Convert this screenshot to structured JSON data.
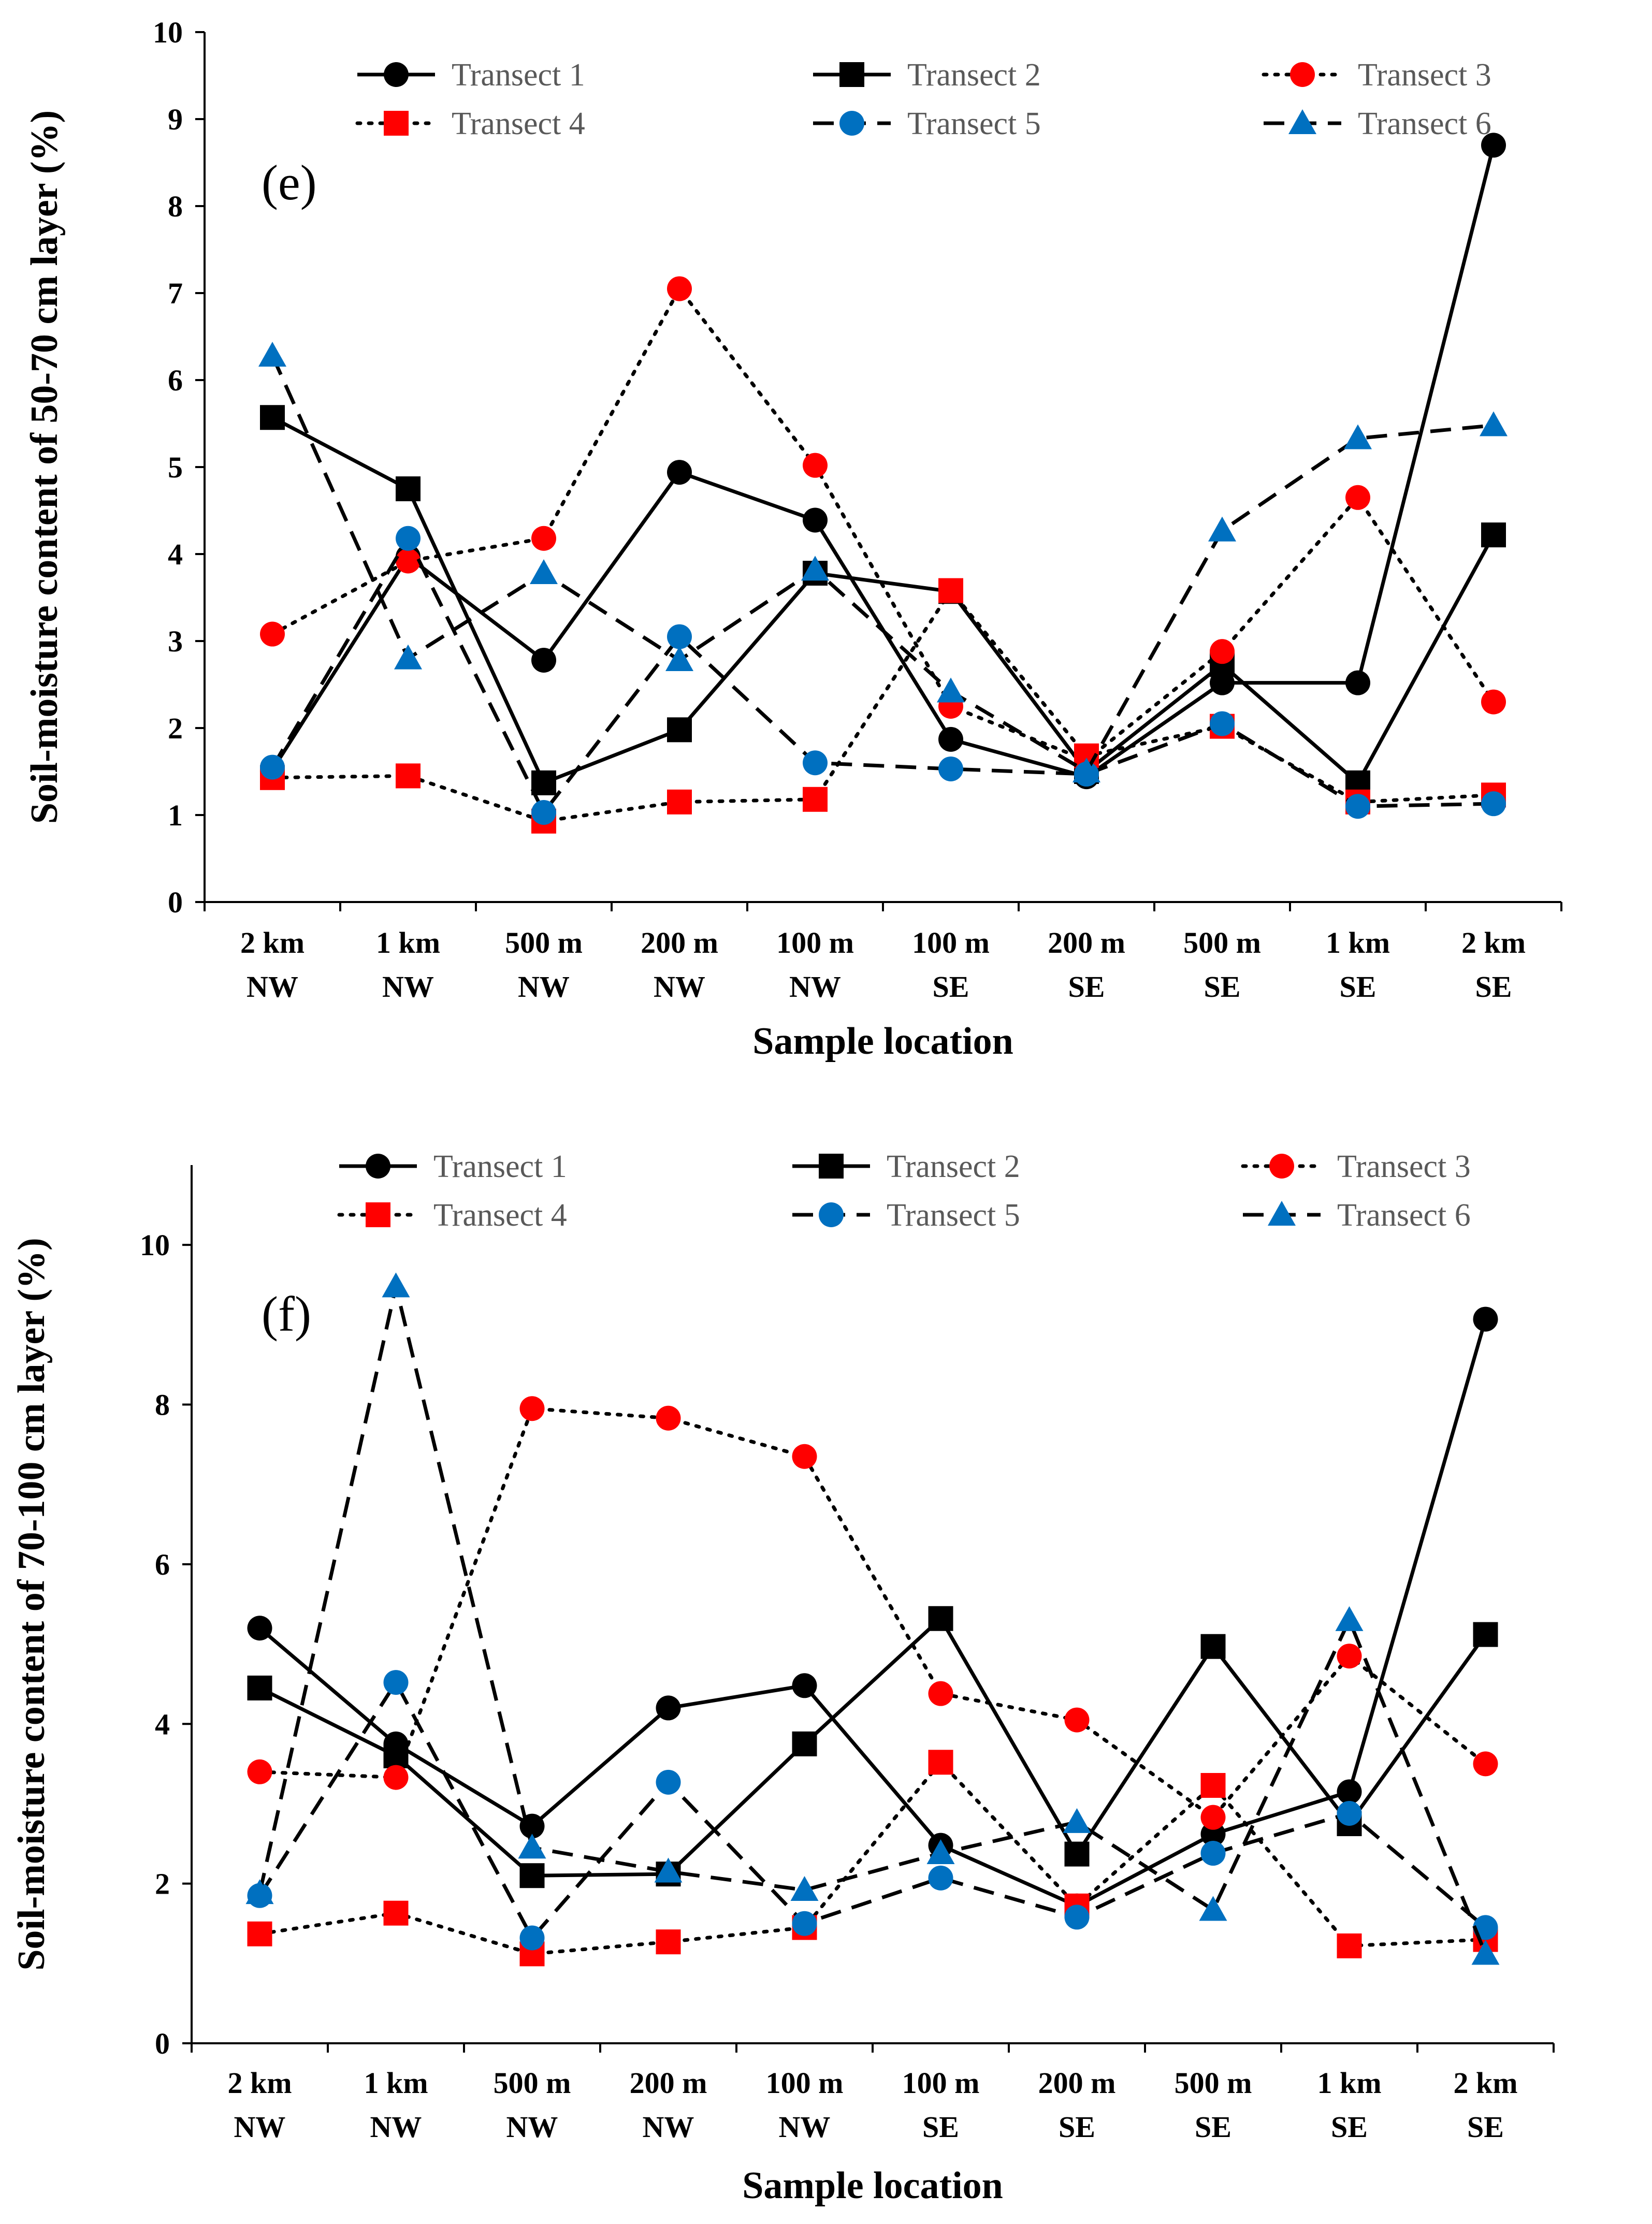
{
  "chart_data": [
    {
      "type": "line",
      "panel_label": "(e)",
      "xlabel": "Sample location",
      "ylabel": "Soil-moisture content of 50-70 cm layer (%)",
      "categories": [
        [
          "2 km",
          "NW"
        ],
        [
          "1 km",
          "NW"
        ],
        [
          "500 m",
          "NW"
        ],
        [
          "200 m",
          "NW"
        ],
        [
          "100 m",
          "NW"
        ],
        [
          "100 m",
          "SE"
        ],
        [
          "200 m",
          "SE"
        ],
        [
          "500 m",
          "SE"
        ],
        [
          "1 km",
          "SE"
        ],
        [
          "2 km",
          "SE"
        ]
      ],
      "ylim": [
        0,
        10
      ],
      "yticks": [
        "0",
        "1",
        "2",
        "3",
        "4",
        "5",
        "6",
        "7",
        "8",
        "9",
        "10"
      ],
      "legend_position": "top",
      "series": [
        {
          "name": "Transect 1",
          "color": "#000000",
          "dash": "solid",
          "marker": "circle",
          "values": [
            1.52,
            3.97,
            2.78,
            4.94,
            4.39,
            1.87,
            1.44,
            2.52,
            2.52,
            8.7
          ]
        },
        {
          "name": "Transect 2",
          "color": "#000000",
          "dash": "solid",
          "marker": "square",
          "values": [
            5.57,
            4.75,
            1.37,
            1.98,
            3.78,
            3.57,
            1.5,
            2.73,
            1.37,
            4.22
          ]
        },
        {
          "name": "Transect 3",
          "color": "#ff0000",
          "dash": "dotted",
          "marker": "circle",
          "values": [
            3.08,
            3.92,
            4.18,
            7.05,
            5.02,
            2.25,
            1.63,
            2.88,
            4.65,
            2.3
          ]
        },
        {
          "name": "Transect 4",
          "color": "#ff0000",
          "dash": "dotted",
          "marker": "square",
          "values": [
            1.43,
            1.45,
            0.93,
            1.15,
            1.18,
            3.58,
            1.68,
            2.02,
            1.15,
            1.23
          ]
        },
        {
          "name": "Transect 5",
          "color": "#0070c0",
          "dash": "dashed",
          "marker": "circle",
          "values": [
            1.55,
            4.18,
            1.03,
            3.05,
            1.6,
            1.53,
            1.47,
            2.05,
            1.1,
            1.13
          ]
        },
        {
          "name": "Transect 6",
          "color": "#0070c0",
          "dash": "dashed",
          "marker": "triangle",
          "values": [
            6.28,
            2.8,
            3.78,
            2.78,
            3.82,
            2.42,
            1.5,
            4.27,
            5.33,
            5.48
          ]
        }
      ]
    },
    {
      "type": "line",
      "panel_label": "(f)",
      "xlabel": "Sample location",
      "ylabel": "Soil-moisture content of 70-100 cm layer (%)",
      "categories": [
        [
          "2 km",
          "NW"
        ],
        [
          "1 km",
          "NW"
        ],
        [
          "500 m",
          "NW"
        ],
        [
          "200 m",
          "NW"
        ],
        [
          "100 m",
          "NW"
        ],
        [
          "100 m",
          "SE"
        ],
        [
          "200 m",
          "SE"
        ],
        [
          "500 m",
          "SE"
        ],
        [
          "1 km",
          "SE"
        ],
        [
          "2 km",
          "SE"
        ]
      ],
      "ylim": [
        0,
        11
      ],
      "yticks": [
        "0",
        "2",
        "4",
        "6",
        "8",
        "10"
      ],
      "legend_position": "top",
      "series": [
        {
          "name": "Transect 1",
          "color": "#000000",
          "dash": "solid",
          "marker": "circle",
          "values": [
            5.2,
            3.75,
            2.72,
            4.2,
            4.48,
            2.48,
            1.72,
            2.62,
            3.15,
            9.07
          ]
        },
        {
          "name": "Transect 2",
          "color": "#000000",
          "dash": "solid",
          "marker": "square",
          "values": [
            4.45,
            3.6,
            2.1,
            2.12,
            3.75,
            5.32,
            2.37,
            4.97,
            2.75,
            5.12
          ]
        },
        {
          "name": "Transect 3",
          "color": "#ff0000",
          "dash": "dotted",
          "marker": "circle",
          "values": [
            3.4,
            3.33,
            7.95,
            7.83,
            7.35,
            4.38,
            4.05,
            2.83,
            4.85,
            3.5
          ]
        },
        {
          "name": "Transect 4",
          "color": "#ff0000",
          "dash": "dotted",
          "marker": "square",
          "values": [
            1.37,
            1.63,
            1.12,
            1.27,
            1.45,
            3.52,
            1.72,
            3.23,
            1.22,
            1.3
          ]
        },
        {
          "name": "Transect 5",
          "color": "#0070c0",
          "dash": "dashed",
          "marker": "circle",
          "values": [
            1.85,
            4.52,
            1.32,
            3.27,
            1.5,
            2.07,
            1.58,
            2.38,
            2.88,
            1.45
          ]
        },
        {
          "name": "Transect 6",
          "color": "#0070c0",
          "dash": "dashed",
          "marker": "triangle",
          "values": [
            1.88,
            9.48,
            2.45,
            2.15,
            1.92,
            2.38,
            2.77,
            1.67,
            5.3,
            1.12
          ]
        }
      ]
    }
  ]
}
